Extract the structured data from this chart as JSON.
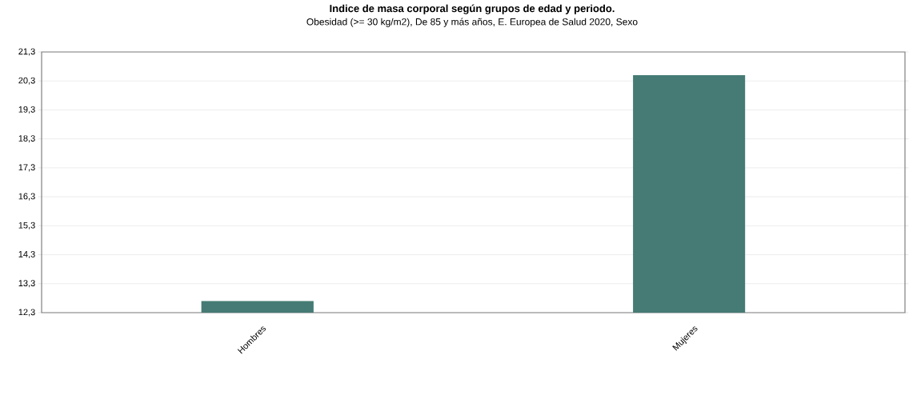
{
  "chart_data": {
    "type": "bar",
    "title": "Indice de masa corporal según grupos de edad y periodo.",
    "subtitle": "Obesidad (>= 30 kg/m2), De 85 y más años, E. Europea de Salud 2020, Sexo",
    "categories": [
      "Hombres",
      "Mujeres"
    ],
    "values": [
      12.7,
      20.5
    ],
    "color": "#457b74",
    "ylim": [
      12.3,
      21.3
    ],
    "yticks": [
      {
        "value": 12.3,
        "label": "12,3"
      },
      {
        "value": 13.3,
        "label": "13,3"
      },
      {
        "value": 14.3,
        "label": "14,3"
      },
      {
        "value": 15.3,
        "label": "15,3"
      },
      {
        "value": 16.3,
        "label": "16,3"
      },
      {
        "value": 17.3,
        "label": "17,3"
      },
      {
        "value": 18.3,
        "label": "18,3"
      },
      {
        "value": 19.3,
        "label": "19,3"
      },
      {
        "value": 20.3,
        "label": "20,3"
      },
      {
        "value": 21.3,
        "label": "21,3"
      }
    ],
    "grid": "y"
  }
}
